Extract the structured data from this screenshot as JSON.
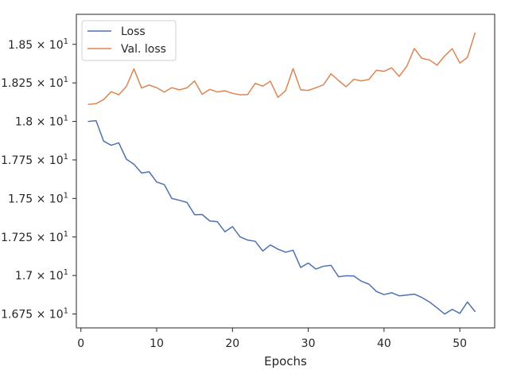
{
  "chart_data": {
    "type": "line",
    "xlabel": "Epochs",
    "ylabel": "",
    "title": "",
    "xlim": [
      -0.6,
      54.6
    ],
    "ylim": [
      16.66,
      18.695
    ],
    "xticks": [
      0,
      10,
      20,
      30,
      40,
      50
    ],
    "xtick_labels": [
      "0",
      "10",
      "20",
      "30",
      "40",
      "50"
    ],
    "yticks": [
      16.75,
      17.0,
      17.25,
      17.5,
      17.75,
      18.0,
      18.25,
      18.5
    ],
    "ytick_labels": [
      "1.675 × 10",
      "1.7 × 10",
      "1.725 × 10",
      "1.75 × 10",
      "1.775 × 10",
      "1.8 × 10",
      "1.825 × 10",
      "1.85 × 10"
    ],
    "ytick_exponent": "1",
    "grid": false,
    "legend_position": "upper-left",
    "x": [
      1,
      2,
      3,
      4,
      5,
      6,
      7,
      8,
      9,
      10,
      11,
      12,
      13,
      14,
      15,
      16,
      17,
      18,
      19,
      20,
      21,
      22,
      23,
      24,
      25,
      26,
      27,
      28,
      29,
      30,
      31,
      32,
      33,
      34,
      35,
      36,
      37,
      38,
      39,
      40,
      41,
      42,
      43,
      44,
      45,
      46,
      47,
      48,
      49,
      50,
      51,
      52
    ],
    "series": [
      {
        "name": "Loss",
        "color": "#4c72b0",
        "values": [
          18.0,
          18.005,
          17.872,
          17.845,
          17.861,
          17.755,
          17.722,
          17.665,
          17.673,
          17.607,
          17.59,
          17.5,
          17.488,
          17.474,
          17.395,
          17.396,
          17.354,
          17.349,
          17.284,
          17.317,
          17.251,
          17.23,
          17.222,
          17.159,
          17.198,
          17.171,
          17.151,
          17.164,
          17.052,
          17.081,
          17.042,
          17.06,
          17.066,
          16.992,
          16.998,
          16.997,
          16.963,
          16.944,
          16.896,
          16.876,
          16.888,
          16.868,
          16.873,
          16.879,
          16.857,
          16.828,
          16.79,
          16.75,
          16.78,
          16.754,
          16.828,
          16.767
        ]
      },
      {
        "name": "Val. loss",
        "color": "#dd8452",
        "values": [
          18.111,
          18.115,
          18.142,
          18.193,
          18.173,
          18.227,
          18.341,
          18.217,
          18.236,
          18.219,
          18.19,
          18.219,
          18.205,
          18.218,
          18.262,
          18.176,
          18.208,
          18.191,
          18.199,
          18.182,
          18.173,
          18.174,
          18.247,
          18.229,
          18.261,
          18.156,
          18.199,
          18.343,
          18.205,
          18.201,
          18.219,
          18.237,
          18.309,
          18.265,
          18.225,
          18.273,
          18.263,
          18.272,
          18.332,
          18.325,
          18.348,
          18.292,
          18.358,
          18.473,
          18.409,
          18.399,
          18.365,
          18.425,
          18.472,
          18.379,
          18.415,
          18.573
        ]
      }
    ]
  }
}
